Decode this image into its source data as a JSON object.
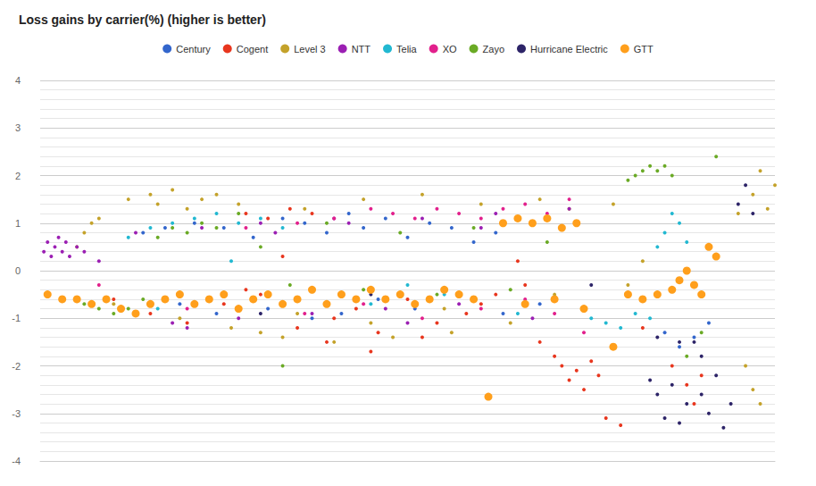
{
  "chart_data": {
    "type": "scatter",
    "title": "Loss gains by carrier(%) (higher is better)",
    "xlim": [
      0,
      100
    ],
    "ylim": [
      -4,
      4
    ],
    "yticks": [
      -4,
      -3,
      -2,
      -1,
      0,
      1,
      2,
      3,
      4
    ],
    "grid": true,
    "legend": "top",
    "tick_labels": "y",
    "marker": "circle",
    "series": [
      {
        "name": "Century",
        "color": "#3366cc",
        "x": [
          14,
          17,
          21,
          25,
          29,
          33,
          36,
          39,
          42,
          44,
          47,
          50,
          53,
          56,
          59,
          62,
          19,
          24,
          31,
          37,
          41,
          46,
          51,
          57,
          63,
          68,
          85,
          87,
          89,
          91
        ],
        "values": [
          0.8,
          0.9,
          1.0,
          0.9,
          0.7,
          1.1,
          1.0,
          0.8,
          1.2,
          0.9,
          1.1,
          0.7,
          1.0,
          0.9,
          0.6,
          0.8,
          -0.7,
          -0.9,
          -0.8,
          -1.0,
          -0.9,
          -0.6,
          -0.8,
          -0.5,
          -0.9,
          -0.7,
          -1.3,
          -1.6,
          -1.4,
          -1.1
        ]
      },
      {
        "name": "Cogent",
        "color": "#e8361e",
        "x": [
          10,
          15,
          20,
          25,
          28,
          31,
          34,
          37,
          40,
          43,
          46,
          50,
          54,
          58,
          62,
          66,
          68,
          70,
          71,
          72,
          73,
          74,
          75,
          76,
          77,
          79,
          82,
          86,
          88,
          89,
          90,
          30,
          35,
          39,
          45,
          52,
          60,
          65,
          28,
          33
        ],
        "values": [
          -0.6,
          -0.9,
          -1.1,
          -0.7,
          1.2,
          1.1,
          1.3,
          1.2,
          -1.0,
          -0.8,
          -1.3,
          -0.6,
          -1.1,
          -0.9,
          -0.5,
          -0.3,
          -1.5,
          -1.8,
          -2.0,
          -2.3,
          -2.1,
          -2.5,
          -1.9,
          -2.2,
          -3.1,
          -3.25,
          -1.2,
          -2.0,
          -2.4,
          -2.8,
          -2.2,
          -0.5,
          -1.2,
          -1.5,
          -1.7,
          -1.4,
          -0.7,
          0.2,
          -0.4,
          0.3
        ]
      },
      {
        "name": "Level 3",
        "color": "#c4a22a",
        "x": [
          5,
          6,
          7,
          8,
          10,
          12,
          15,
          16,
          18,
          20,
          22,
          24,
          27,
          30,
          33,
          36,
          40,
          44,
          48,
          52,
          56,
          60,
          64,
          68,
          72,
          78,
          80,
          82,
          95,
          97,
          98,
          99,
          100,
          96,
          97,
          98,
          19,
          26,
          35,
          45,
          55,
          70
        ],
        "values": [
          0.5,
          0.8,
          1.0,
          1.1,
          -0.7,
          1.5,
          1.6,
          1.4,
          1.7,
          1.3,
          1.5,
          1.6,
          1.4,
          -1.3,
          -1.4,
          1.3,
          -1.5,
          1.5,
          -1.4,
          1.6,
          -1.3,
          1.4,
          -1.1,
          1.5,
          1.3,
          1.4,
          -0.3,
          0.2,
          1.2,
          1.6,
          2.1,
          1.3,
          1.8,
          -2.0,
          -2.5,
          -2.8,
          -1.0,
          -1.2,
          -0.9,
          -1.1,
          -0.8,
          -0.5
        ]
      },
      {
        "name": "NTT",
        "color": "#9b1fb3",
        "x": [
          0.5,
          1,
          1.5,
          2,
          2.5,
          3,
          3.5,
          4,
          5,
          6,
          8,
          13,
          18,
          22,
          27,
          32,
          37,
          42,
          47,
          52,
          57,
          62,
          67,
          72,
          20,
          30,
          40,
          50,
          60,
          70
        ],
        "values": [
          0.4,
          0.6,
          0.3,
          0.5,
          0.7,
          0.4,
          0.6,
          0.3,
          0.5,
          0.4,
          0.2,
          0.8,
          -1.1,
          0.9,
          -1.0,
          0.8,
          -0.9,
          1.0,
          -0.8,
          1.1,
          -0.7,
          1.2,
          -1.0,
          1.3,
          -1.2,
          1.0,
          1.1,
          -1.1,
          0.9,
          -0.6
        ]
      },
      {
        "name": "Telia",
        "color": "#22b8d1",
        "x": [
          12,
          15,
          18,
          21,
          24,
          27,
          30,
          33,
          16,
          25,
          35,
          45,
          55,
          65,
          75,
          77,
          79,
          81,
          83,
          84,
          85,
          86,
          87,
          88,
          26,
          50
        ],
        "values": [
          0.7,
          0.9,
          1.0,
          1.1,
          1.2,
          1.0,
          1.1,
          0.9,
          -0.8,
          -0.5,
          -0.6,
          -0.7,
          -0.5,
          -0.9,
          -1.0,
          -1.1,
          -1.2,
          -0.9,
          -1.0,
          0.5,
          0.8,
          1.2,
          1.0,
          0.6,
          0.2,
          -0.3
        ]
      },
      {
        "name": "XO",
        "color": "#e2208c",
        "x": [
          8,
          20,
          28,
          35,
          40,
          45,
          48,
          51,
          54,
          57,
          60,
          63,
          66,
          69,
          72,
          36,
          44,
          52,
          60,
          66,
          70,
          74,
          78
        ],
        "values": [
          -0.3,
          -0.8,
          0.9,
          1.0,
          1.1,
          1.3,
          1.2,
          1.1,
          1.3,
          1.2,
          1.1,
          1.3,
          1.4,
          1.2,
          1.5,
          -0.9,
          -0.7,
          -1.0,
          -0.8,
          -0.6,
          -0.9,
          -1.3,
          -1.6
        ]
      },
      {
        "name": "Zayo",
        "color": "#6aaa25",
        "x": [
          6,
          8,
          10,
          12,
          14,
          16,
          18,
          20,
          22,
          24,
          27,
          30,
          34,
          39,
          44,
          49,
          54,
          59,
          64,
          69,
          74,
          80,
          81,
          82,
          83,
          84,
          85,
          86,
          92,
          88,
          90,
          33
        ],
        "values": [
          -0.7,
          -0.8,
          -0.9,
          -0.8,
          -0.6,
          0.7,
          0.9,
          0.8,
          1.0,
          0.9,
          1.2,
          0.5,
          -0.3,
          1.0,
          -0.4,
          0.8,
          -0.5,
          0.9,
          -0.4,
          0.6,
          -0.8,
          1.9,
          2.0,
          2.1,
          2.2,
          2.1,
          2.2,
          2.0,
          2.4,
          -1.8,
          -1.3,
          -2.0
        ]
      },
      {
        "name": "Hurricane Electric",
        "color": "#2d2468",
        "x": [
          83,
          84,
          85,
          86,
          87,
          88,
          89,
          90,
          91,
          92,
          93,
          94,
          95,
          96,
          97,
          84,
          87,
          90,
          75,
          30,
          45
        ],
        "values": [
          -2.3,
          -2.6,
          -3.1,
          -2.4,
          -3.2,
          -2.8,
          -1.5,
          -2.6,
          -3.0,
          -2.2,
          -3.3,
          -2.8,
          1.4,
          1.8,
          1.2,
          -1.4,
          -1.5,
          -1.8,
          -0.3,
          -0.9,
          -0.5
        ]
      },
      {
        "name": "GTT",
        "color": "#ff9f1c",
        "x": [
          1,
          3,
          5,
          7,
          9,
          11,
          13,
          15,
          17,
          19,
          21,
          23,
          25,
          27,
          29,
          31,
          33,
          35,
          37,
          39,
          41,
          43,
          45,
          47,
          49,
          51,
          53,
          55,
          57,
          59,
          61,
          63,
          65,
          67,
          69,
          71,
          73,
          66,
          70,
          74,
          78,
          80,
          82,
          84,
          86,
          87,
          88,
          89,
          90,
          91,
          92
        ],
        "values": [
          -0.5,
          -0.6,
          -0.6,
          -0.7,
          -0.6,
          -0.8,
          -0.9,
          -0.7,
          -0.6,
          -0.5,
          -0.7,
          -0.6,
          -0.5,
          -0.8,
          -0.6,
          -0.5,
          -0.7,
          -0.6,
          -0.4,
          -0.7,
          -0.5,
          -0.6,
          -0.4,
          -0.6,
          -0.5,
          -0.7,
          -0.6,
          -0.4,
          -0.5,
          -0.6,
          -2.65,
          1.0,
          1.1,
          1.0,
          1.1,
          0.9,
          1.0,
          -0.7,
          -0.6,
          -0.8,
          -1.6,
          -0.5,
          -0.6,
          -0.5,
          -0.4,
          -0.2,
          0.0,
          -0.3,
          -0.5,
          0.5,
          0.3
        ]
      }
    ]
  }
}
